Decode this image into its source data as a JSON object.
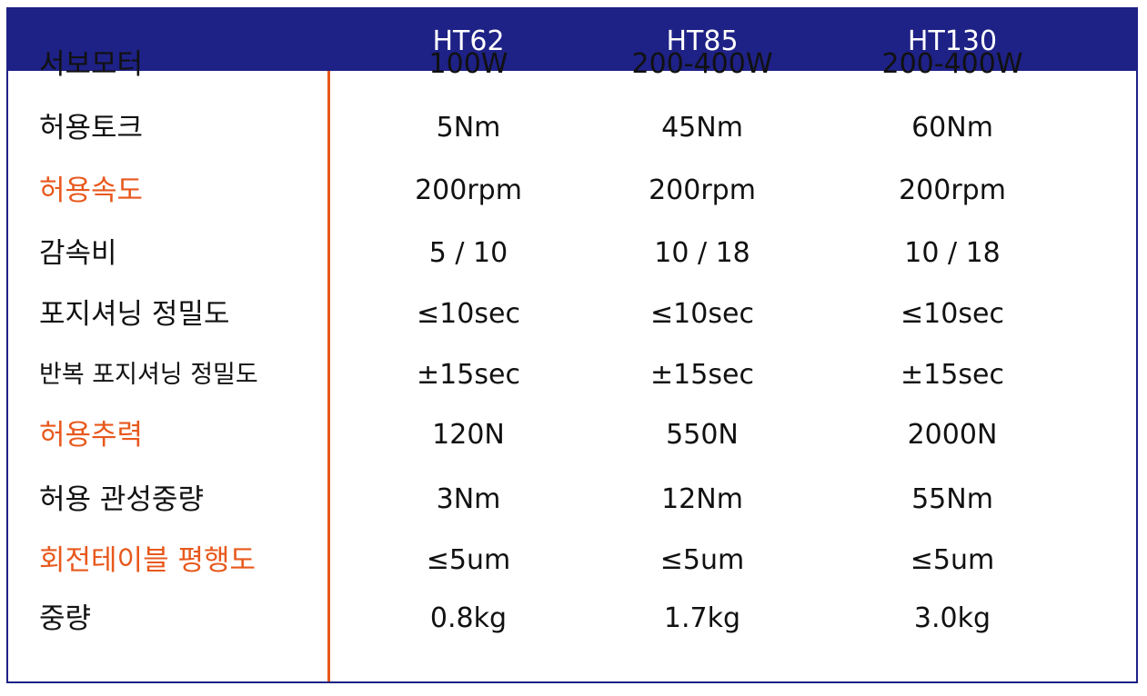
{
  "columns": [
    "HT62",
    "HT85",
    "HT130"
  ],
  "colors": {
    "header_bg": "#1e2185",
    "highlight": "#e8581c",
    "divider": "#e8581c"
  },
  "rows": [
    {
      "label": "서보모터",
      "highlight": false,
      "values": [
        "100W",
        "200-400W",
        "200-400W"
      ]
    },
    {
      "label": "허용토크",
      "highlight": false,
      "values": [
        "5Nm",
        "45Nm",
        "60Nm"
      ]
    },
    {
      "label": "허용속도",
      "highlight": true,
      "values": [
        "200rpm",
        "200rpm",
        "200rpm"
      ]
    },
    {
      "label": "감속비",
      "highlight": false,
      "values": [
        "5 / 10",
        "10 / 18",
        "10 / 18"
      ]
    },
    {
      "label": "포지셔닝 정밀도",
      "highlight": false,
      "values": [
        "≤10sec",
        "≤10sec",
        "≤10sec"
      ]
    },
    {
      "label": "반복 포지셔닝 정밀도",
      "highlight": false,
      "values": [
        "±15sec",
        "±15sec",
        "±15sec"
      ]
    },
    {
      "label": "허용추력",
      "highlight": true,
      "values": [
        "120N",
        "550N",
        "2000N"
      ]
    },
    {
      "label": "허용 관성중량",
      "highlight": false,
      "values": [
        "3Nm",
        "12Nm",
        "55Nm"
      ]
    },
    {
      "label": "회전테이블 평행도",
      "highlight": true,
      "values": [
        "≤5um",
        "≤5um",
        "≤5um"
      ]
    },
    {
      "label": "중량",
      "highlight": false,
      "values": [
        "0.8kg",
        "1.7kg",
        "3.0kg"
      ]
    }
  ]
}
